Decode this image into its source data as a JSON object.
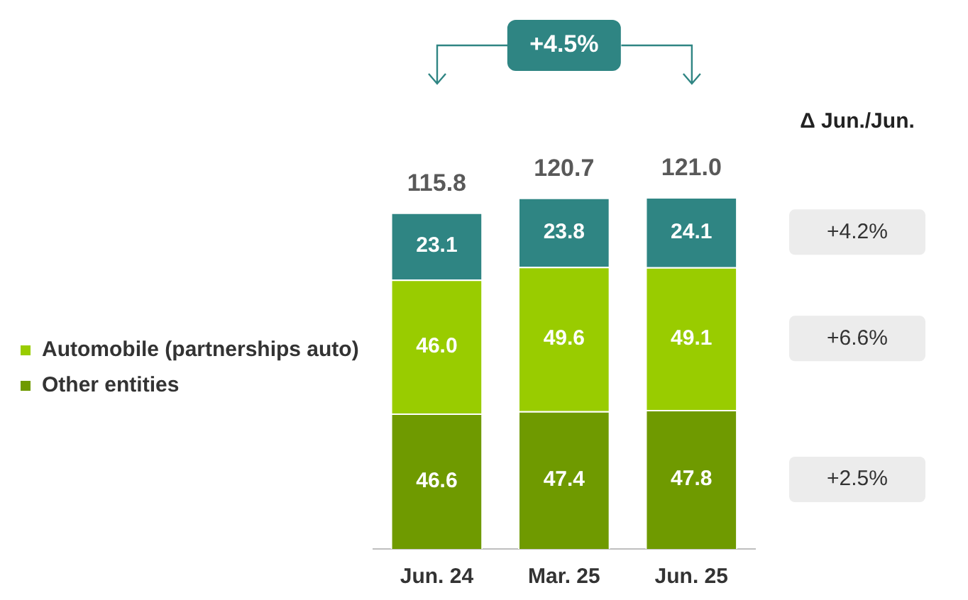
{
  "chart_data": {
    "type": "bar",
    "stacked": true,
    "categories": [
      "Jun. 24",
      "Mar. 25",
      "Jun. 25"
    ],
    "series": [
      {
        "name": "Other entities",
        "color": "#6f9a00",
        "values": [
          46.6,
          47.4,
          47.8
        ],
        "value_labels": [
          "46.6",
          "47.4",
          "47.8"
        ]
      },
      {
        "name": "Automobile (partnerships auto)",
        "color": "#99cc00",
        "values": [
          46.0,
          49.6,
          49.1
        ],
        "value_labels": [
          "46.0",
          "49.6",
          "49.1"
        ]
      },
      {
        "color": "#2f8583",
        "values": [
          23.1,
          23.8,
          24.1
        ],
        "value_labels": [
          "23.1",
          "23.8",
          "24.1"
        ]
      }
    ],
    "totals": [
      "115.8",
      "120.7",
      "121.0"
    ],
    "legend": "left",
    "annotations": [
      "+4.5%",
      "Δ Jun./Jun.",
      "+4.2%",
      "+6.6%",
      "+2.5%"
    ]
  }
}
